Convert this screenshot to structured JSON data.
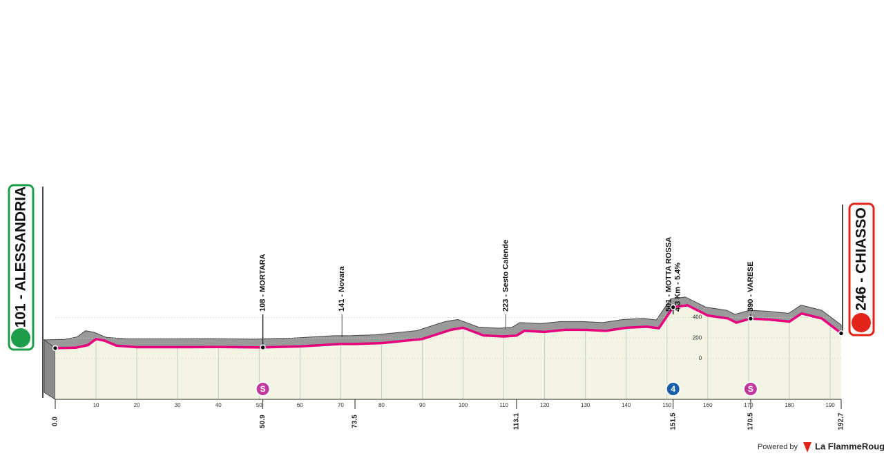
{
  "chart_data": {
    "type": "area",
    "start": "101 - ALESSANDRIA",
    "finish": "246 - CHIASSO",
    "x": [
      0,
      5,
      8,
      10,
      12,
      15,
      20,
      30,
      40,
      50.9,
      60,
      70,
      73.5,
      80,
      90,
      97,
      100,
      105,
      110,
      113.1,
      115,
      120,
      125,
      130,
      135,
      140,
      145,
      148,
      151.5,
      155,
      160,
      165,
      167,
      170.5,
      175,
      180,
      183,
      188,
      192.7
    ],
    "values": [
      101,
      105,
      130,
      190,
      175,
      125,
      110,
      110,
      112,
      108,
      118,
      141,
      141,
      150,
      190,
      280,
      300,
      225,
      215,
      223,
      270,
      260,
      280,
      280,
      270,
      300,
      310,
      295,
      501,
      520,
      420,
      390,
      350,
      390,
      380,
      360,
      440,
      390,
      246
    ],
    "color": "#e6007e",
    "fill": "#f3f4e3",
    "xlim": [
      0,
      192.7
    ],
    "ylim": [
      -400,
      600
    ],
    "xticks": [
      10,
      20,
      30,
      40,
      50,
      60,
      70,
      80,
      90,
      100,
      110,
      120,
      130,
      140,
      150,
      160,
      170,
      180,
      190
    ],
    "yticks": [
      0,
      200,
      400
    ],
    "km_markers": [
      {
        "value": 0,
        "label": "0.0"
      },
      50.9,
      73.5,
      113.1,
      151.5,
      170.5,
      192.7
    ],
    "places": [
      {
        "text": "108 - MORTARA",
        "km": 50.9
      },
      {
        "text": "141 - Novara",
        "km": 70.3
      },
      {
        "text": "223 - Sesto Calende",
        "km": 110.5
      },
      {
        "text": "501 - MOTTA ROSSA",
        "note": "4.3 Km - 5.4%",
        "km": 151.5
      },
      {
        "text": "390 - VARESE",
        "km": 170.5
      }
    ],
    "intermediate": [
      {
        "label": "S",
        "km": 50.9,
        "color": "#c0399c"
      },
      {
        "label": "4",
        "km": 151.5,
        "color": "#1b5fa8"
      },
      {
        "label": "S",
        "km": 170.5,
        "color": "#c0399c"
      }
    ],
    "credit": "Powered by",
    "brand": "La FlammeRouge"
  }
}
